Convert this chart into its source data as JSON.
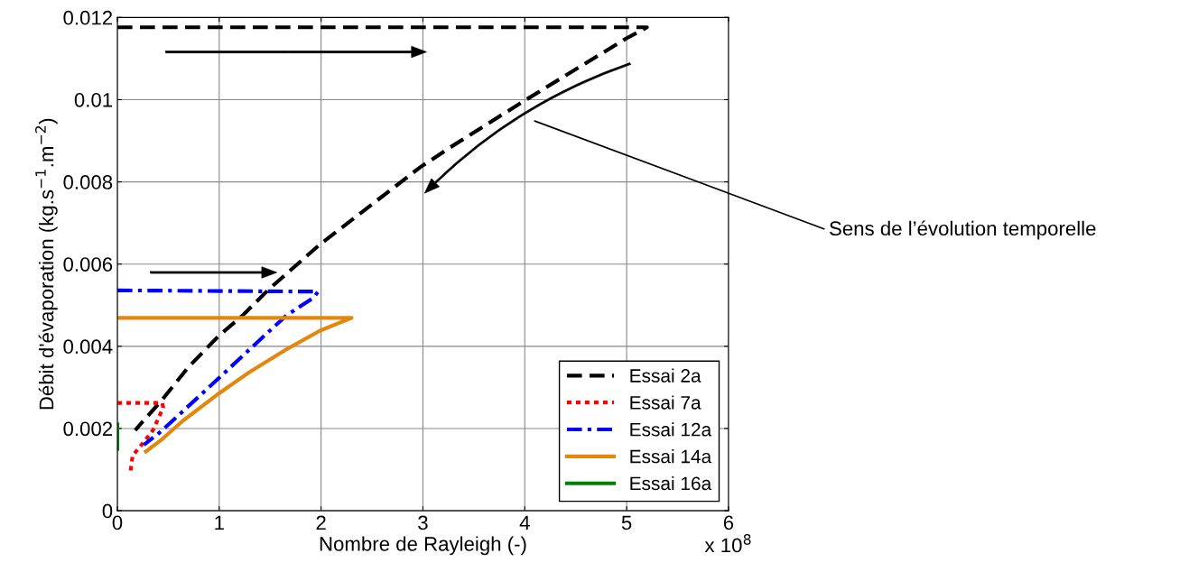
{
  "chart_data": {
    "type": "line",
    "xlabel": "Nombre de Rayleigh (-)",
    "ylabel": "Débit d'évaporation (kg.s$^{−1}$.m$^{−2}$)",
    "xlim": [
      0,
      6
    ],
    "xticks": [
      0,
      1,
      2,
      3,
      4,
      5,
      6
    ],
    "ylim": [
      0,
      0.012
    ],
    "yticks": [
      0,
      0.002,
      0.004,
      0.006,
      0.008,
      0.01,
      0.012
    ],
    "grid": true,
    "legend": "bottom right",
    "annotations": [
      "Sens de l’évolution temporelle",
      "x 10$^{8}$"
    ],
    "series": [
      {
        "name": "Essai 2a",
        "color": "#000000",
        "line_style": "dashed",
        "x": [
          0,
          5.2,
          4.99,
          4.0,
          3.25,
          2.97,
          1.99,
          1.48,
          1.23,
          0.99,
          0.7,
          0.44,
          0.175
        ],
        "values": [
          0.01176,
          0.01176,
          0.01148,
          0.00998,
          0.00881,
          0.00835,
          0.00648,
          0.00537,
          0.00475,
          0.00424,
          0.0035,
          0.0027,
          0.00196
        ]
      },
      {
        "name": "Essai 7a",
        "color": "#ff0000",
        "line_style": "dotted",
        "x": [
          0,
          0.44,
          0.45,
          0.35,
          0.26,
          0.15,
          0.13
        ],
        "values": [
          0.00262,
          0.00262,
          0.00251,
          0.00196,
          0.00167,
          0.00134,
          0.00097
        ]
      },
      {
        "name": "Essai 12a",
        "color": "#0000ff",
        "line_style": "dashdot",
        "x": [
          0,
          1.97,
          1.93,
          1.66,
          1.34,
          0.99,
          0.67,
          0.41,
          0.26
        ],
        "values": [
          0.00536,
          0.00533,
          0.00519,
          0.00475,
          0.00402,
          0.00321,
          0.00248,
          0.00189,
          0.0016
        ]
      },
      {
        "name": "Essai 14a",
        "color": "#e5870f",
        "line_style": "solid",
        "x": [
          0,
          2.3,
          1.99,
          1.67,
          1.29,
          0.99,
          0.64,
          0.44,
          0.28
        ],
        "values": [
          0.00469,
          0.00469,
          0.00438,
          0.00394,
          0.00336,
          0.00284,
          0.00218,
          0.00174,
          0.00144
        ]
      },
      {
        "name": "Essai 16a",
        "color": "#008000",
        "line_style": "solid",
        "x": [
          0,
          0
        ],
        "values": [
          0.0021,
          0.0015
        ]
      }
    ]
  }
}
